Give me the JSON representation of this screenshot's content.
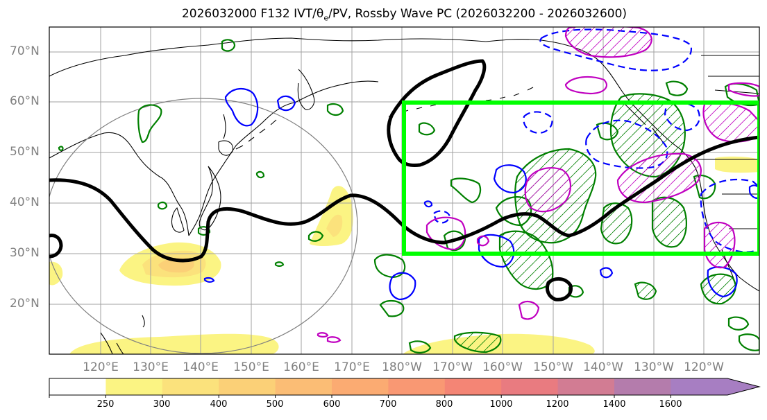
{
  "title": {
    "prefix": "2026032000 F132 IVT/",
    "theta": "θ",
    "theta_sub": "e",
    "suffix": "/PV, Rossby Wave PC (2026032200 - 2026032600)"
  },
  "lat_labels": [
    "70°N",
    "60°N",
    "50°N",
    "40°N",
    "30°N",
    "20°N"
  ],
  "lon_labels": [
    "120°E",
    "130°E",
    "140°E",
    "150°E",
    "160°E",
    "170°E",
    "180°W",
    "170°W",
    "160°W",
    "150°W",
    "140°W",
    "130°W",
    "120°W"
  ],
  "colorbar": {
    "labels": [
      "250",
      "300",
      "400",
      "500",
      "600",
      "700",
      "800",
      "1000",
      "1200",
      "1400",
      "1600"
    ],
    "colors": [
      "#ffffff",
      "#fbf483",
      "#fbe27c",
      "#fbd077",
      "#fbbd75",
      "#fbab72",
      "#f99873",
      "#f48575",
      "#e97b80",
      "#d27c93",
      "#b47cac",
      "#a77ec2"
    ]
  },
  "chart_data": {
    "type": "map",
    "projection": "cylindrical",
    "lon_range": [
      110,
      252
    ],
    "lat_range": [
      10,
      75
    ],
    "gridlines": true,
    "region_box": {
      "lon": [
        180,
        252
      ],
      "lat": [
        30,
        60
      ],
      "color": "#00ff00"
    },
    "rossby_wave_pc_axis_color": "#000000",
    "positive_contour_color": "#008000",
    "negative_contour_color": "#0000ff",
    "pv_contour_color": "#c000c0"
  }
}
